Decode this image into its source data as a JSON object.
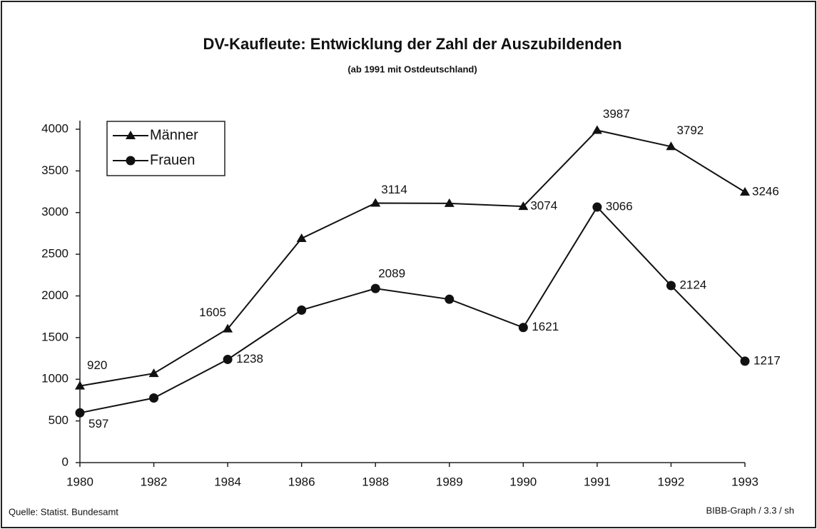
{
  "chart_data": {
    "type": "line",
    "title": "DV-Kaufleute: Entwicklung der Zahl der Auszubildenden",
    "subtitle": "(ab 1991 mit Ostdeutschland)",
    "categories": [
      "1980",
      "1982",
      "1984",
      "1986",
      "1988",
      "1989",
      "1990",
      "1991",
      "1992",
      "1993"
    ],
    "series": [
      {
        "name": "Männer",
        "color": "#111111",
        "marker": "triangle",
        "values": [
          920,
          1070,
          1605,
          2690,
          3114,
          3110,
          3074,
          3987,
          3792,
          3246
        ],
        "value_labels": [
          "920",
          null,
          "1605",
          null,
          "3114",
          null,
          "3074",
          "3987",
          "3792",
          "3246"
        ]
      },
      {
        "name": "Frauen",
        "color": "#111111",
        "marker": "circle",
        "values": [
          597,
          775,
          1238,
          1830,
          2089,
          1960,
          1621,
          3066,
          2124,
          1217
        ],
        "value_labels": [
          "597",
          null,
          "1238",
          null,
          "2089",
          null,
          "1621",
          "3066",
          "2124",
          "1217"
        ]
      }
    ],
    "ylim": [
      0,
      4000
    ],
    "yticks": [
      0,
      500,
      1000,
      1500,
      2000,
      2500,
      3000,
      3500,
      4000
    ],
    "legend": "upper left",
    "source": "Quelle: Statist. Bundesamt",
    "credit": "BIBB-Graph / 3.3 / sh"
  }
}
